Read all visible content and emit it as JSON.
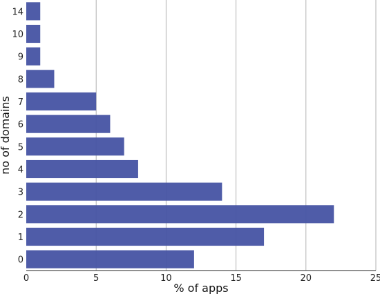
{
  "chart_data": {
    "type": "bar",
    "orientation": "horizontal",
    "categories": [
      "0",
      "1",
      "2",
      "3",
      "4",
      "5",
      "6",
      "7",
      "8",
      "9",
      "10",
      "14"
    ],
    "values": [
      12,
      17,
      22,
      14,
      8,
      7,
      6,
      5,
      2,
      1,
      1,
      1
    ],
    "xlabel": "% of apps",
    "ylabel": "no of domains",
    "xlim": [
      0,
      25
    ],
    "xticks": [
      "0",
      "5",
      "10",
      "15",
      "20",
      "25"
    ],
    "grid": "vertical",
    "bar_color": "#4653a3"
  }
}
